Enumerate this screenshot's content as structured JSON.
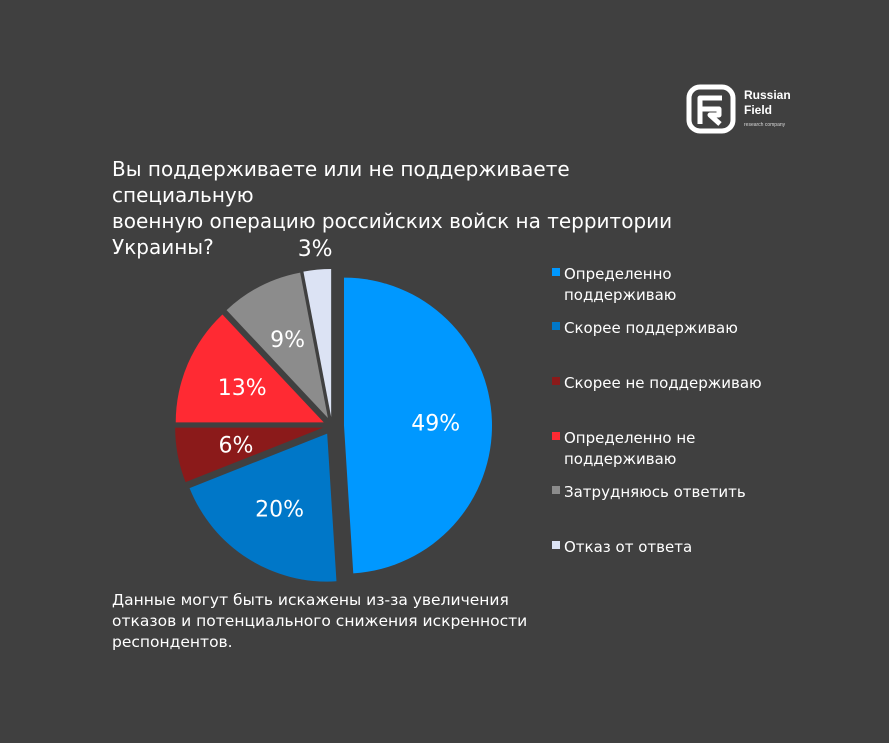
{
  "brand": {
    "name": "Russian\nField",
    "tagline": "research company"
  },
  "title": "Вы поддерживаете или не поддерживаете специальную\nвоенную операцию российских войск на территории\nУкраины?",
  "note": "Данные могут быть искажены из-за увеличения отказов и потенциального снижения искренности респондентов.",
  "chart_data": {
    "type": "pie",
    "title": "Вы поддерживаете или не поддерживаете специальную военную операцию российских войск на территории Украины?",
    "legend_position": "right",
    "slices": [
      {
        "label": "Определенно поддерживаю",
        "value": 49,
        "display": "49%",
        "color": "#0098FF"
      },
      {
        "label": "Скорее поддерживаю",
        "value": 20,
        "display": "20%",
        "color": "#0077C8"
      },
      {
        "label": "Скорее не поддерживаю",
        "value": 6,
        "display": "6%",
        "color": "#8B1A1A"
      },
      {
        "label": "Определенно не поддерживаю",
        "value": 13,
        "display": "13%",
        "color": "#FF2A33"
      },
      {
        "label": "Затрудняюсь ответить",
        "value": 9,
        "display": "9%",
        "color": "#8C8C8C"
      },
      {
        "label": "Отказ от ответа",
        "value": 3,
        "display": "3%",
        "color": "#DCE3F4"
      }
    ]
  },
  "legend": [
    {
      "label": "Определенно\nподдерживаю",
      "color": "#0098FF"
    },
    {
      "label": "Скорее поддерживаю",
      "color": "#0077C8"
    },
    {
      "label": "Скорее не поддерживаю",
      "color": "#8B1A1A"
    },
    {
      "label": "Определенно не\nподдерживаю",
      "color": "#FF2A33"
    },
    {
      "label": "Затрудняюсь ответить",
      "color": "#8C8C8C"
    },
    {
      "label": "Отказ от ответа",
      "color": "#DCE3F4"
    }
  ]
}
